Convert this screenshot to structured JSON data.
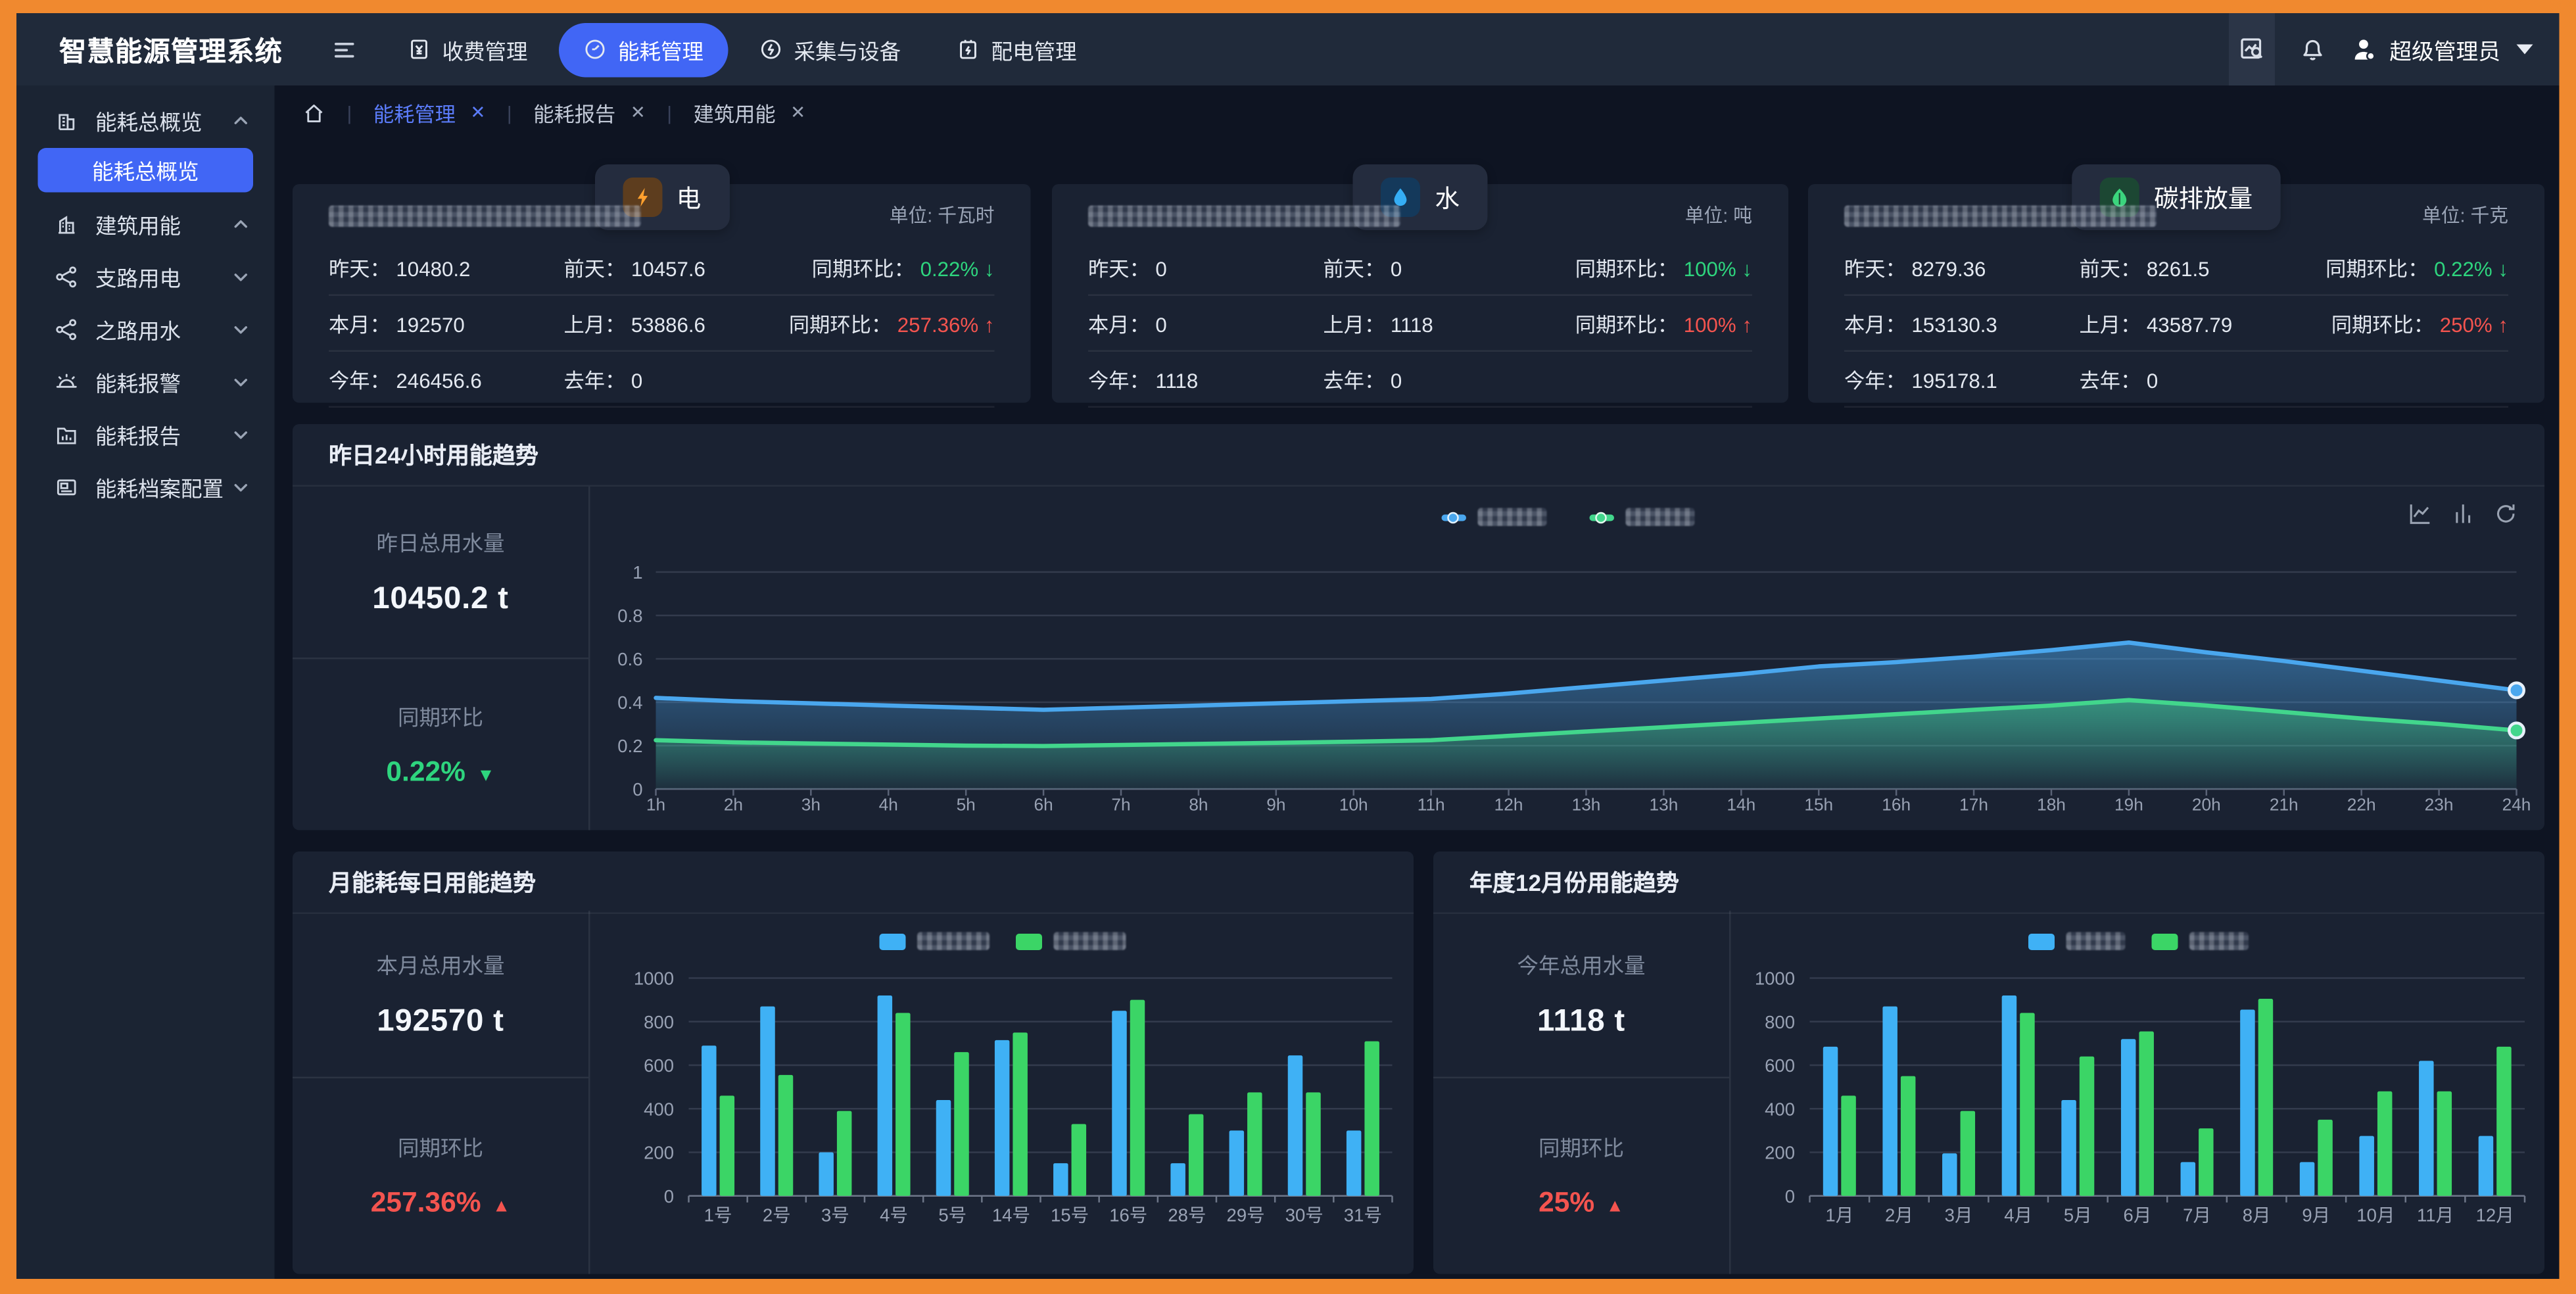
{
  "app_title": "智慧能源管理系统",
  "topbar": {
    "menu": [
      {
        "key": "fee-management",
        "label": "收费管理",
        "icon": "fee",
        "active": false
      },
      {
        "key": "energy-management",
        "label": "能耗管理",
        "icon": "gauge",
        "active": true
      },
      {
        "key": "collection-devices",
        "label": "采集与设备",
        "icon": "collect",
        "active": false
      },
      {
        "key": "power-distribution",
        "label": "配电管理",
        "icon": "distribute",
        "active": false
      }
    ],
    "user_name": "超级管理员"
  },
  "sidebar": {
    "group_top": {
      "key": "overview-group",
      "label": "能耗总概览",
      "icon": "building1",
      "arrow": "up"
    },
    "selected_child": {
      "key": "overview-page",
      "label": "能耗总概览"
    },
    "groups": [
      {
        "key": "building-energy",
        "label": "建筑用能",
        "icon": "building2",
        "arrow": "up"
      },
      {
        "key": "branch-electricity",
        "label": "支路用电",
        "icon": "branch",
        "arrow": "down"
      },
      {
        "key": "branch-water",
        "label": "之路用水",
        "icon": "branch",
        "arrow": "down"
      },
      {
        "key": "energy-alarm",
        "label": "能耗报警",
        "icon": "alarm",
        "arrow": "down"
      },
      {
        "key": "energy-report",
        "label": "能耗报告",
        "icon": "report",
        "arrow": "down"
      },
      {
        "key": "energy-archive-config",
        "label": "能耗档案配置",
        "icon": "archive",
        "arrow": "down"
      }
    ]
  },
  "tabs": [
    {
      "key": "tab-energy-management",
      "label": "能耗管理",
      "active": true
    },
    {
      "key": "tab-energy-report",
      "label": "能耗报告",
      "active": false
    },
    {
      "key": "tab-building-energy",
      "label": "建筑用能",
      "active": false
    }
  ],
  "stat_cards": [
    {
      "key": "electricity",
      "badge_label": "电",
      "badge_icon": "bolt",
      "unit": "单位: 千瓦时",
      "title_redacted": true,
      "rows": [
        {
          "cells": [
            {
              "label": "昨天",
              "value": "10480.2"
            },
            {
              "label": "前天",
              "value": "10457.6"
            }
          ],
          "ratio": {
            "label": "同期环比",
            "value": "0.22%",
            "trend": "down",
            "tone": "green"
          }
        },
        {
          "cells": [
            {
              "label": "本月",
              "value": "192570"
            },
            {
              "label": "上月",
              "value": "53886.6"
            }
          ],
          "ratio": {
            "label": "同期环比",
            "value": "257.36%",
            "trend": "up",
            "tone": "red"
          }
        },
        {
          "cells": [
            {
              "label": "今年",
              "value": "246456.6"
            },
            {
              "label": "去年",
              "value": "0"
            }
          ],
          "ratio": null
        }
      ]
    },
    {
      "key": "water",
      "badge_label": "水",
      "badge_icon": "droplet",
      "unit": "单位: 吨",
      "title_redacted": true,
      "rows": [
        {
          "cells": [
            {
              "label": "昨天",
              "value": "0"
            },
            {
              "label": "前天",
              "value": "0"
            }
          ],
          "ratio": {
            "label": "同期环比",
            "value": "100%",
            "trend": "down",
            "tone": "green"
          }
        },
        {
          "cells": [
            {
              "label": "本月",
              "value": "0"
            },
            {
              "label": "上月",
              "value": "1118"
            }
          ],
          "ratio": {
            "label": "同期环比",
            "value": "100%",
            "trend": "up",
            "tone": "red"
          }
        },
        {
          "cells": [
            {
              "label": "今年",
              "value": "1118"
            },
            {
              "label": "去年",
              "value": "0"
            }
          ],
          "ratio": null
        }
      ]
    },
    {
      "key": "carbon",
      "badge_label": "碳排放量",
      "badge_icon": "leaf",
      "unit": "单位: 千克",
      "title_redacted": true,
      "rows": [
        {
          "cells": [
            {
              "label": "昨天",
              "value": "8279.36"
            },
            {
              "label": "前天",
              "value": "8261.5"
            }
          ],
          "ratio": {
            "label": "同期环比",
            "value": "0.22%",
            "trend": "down",
            "tone": "green"
          }
        },
        {
          "cells": [
            {
              "label": "本月",
              "value": "153130.3"
            },
            {
              "label": "上月",
              "value": "43587.79"
            }
          ],
          "ratio": {
            "label": "同期环比",
            "value": "250%",
            "trend": "up",
            "tone": "red"
          }
        },
        {
          "cells": [
            {
              "label": "今年",
              "value": "195178.1"
            },
            {
              "label": "去年",
              "value": "0"
            }
          ],
          "ratio": null
        }
      ]
    }
  ],
  "trend24": {
    "title": "昨日24小时用能趋势",
    "stats": [
      {
        "label": "昨日总用水量",
        "value": "10450.2 t"
      },
      {
        "label": "同期环比",
        "value": "0.22%",
        "arrow": "▼",
        "tone": "green"
      }
    ],
    "legend": [
      {
        "color": "#4aa7ee",
        "redacted": true
      },
      {
        "color": "#42d68c",
        "redacted": true
      }
    ],
    "chart_data": {
      "type": "line",
      "x": [
        "1h",
        "2h",
        "3h",
        "4h",
        "5h",
        "6h",
        "7h",
        "8h",
        "9h",
        "10h",
        "11h",
        "12h",
        "13h",
        "13h",
        "14h",
        "15h",
        "16h",
        "17h",
        "18h",
        "19h",
        "20h",
        "21h",
        "22h",
        "23h",
        "24h"
      ],
      "series": [
        {
          "name": "series-blue",
          "color": "#4aa7ee",
          "values": [
            0.42,
            0.405,
            0.395,
            0.385,
            0.375,
            0.365,
            0.375,
            0.385,
            0.395,
            0.405,
            0.415,
            0.44,
            0.47,
            0.5,
            0.53,
            0.565,
            0.585,
            0.61,
            0.64,
            0.675,
            0.63,
            0.59,
            0.545,
            0.5,
            0.455
          ]
        },
        {
          "name": "series-green",
          "color": "#42d68c",
          "values": [
            0.225,
            0.215,
            0.21,
            0.205,
            0.2,
            0.198,
            0.203,
            0.208,
            0.213,
            0.218,
            0.225,
            0.245,
            0.265,
            0.285,
            0.305,
            0.325,
            0.345,
            0.365,
            0.385,
            0.41,
            0.385,
            0.355,
            0.325,
            0.3,
            0.27
          ]
        }
      ],
      "ylim": [
        0,
        1
      ],
      "yticks": [
        0,
        0.2,
        0.4,
        0.6,
        0.8,
        1
      ],
      "grid": true,
      "legend_position": "top-center",
      "end_markers": true
    }
  },
  "monthly": {
    "title": "月能耗每日用能趋势",
    "stats": [
      {
        "label": "本月总用水量",
        "value": "192570 t"
      },
      {
        "label": "同期环比",
        "value": "257.36%",
        "arrow": "▲",
        "tone": "red"
      }
    ],
    "legend": [
      {
        "color": "#3fb1f5",
        "redacted": true
      },
      {
        "color": "#3bd566",
        "redacted": true
      }
    ],
    "chart_data": {
      "type": "bar",
      "categories": [
        "1号",
        "2号",
        "3号",
        "4号",
        "5号",
        "14号",
        "15号",
        "16号",
        "28号",
        "29号",
        "30号",
        "31号"
      ],
      "series": [
        {
          "name": "series-blue",
          "color": "#3fb1f5",
          "values": [
            690,
            870,
            200,
            920,
            440,
            715,
            150,
            850,
            150,
            300,
            645,
            300
          ]
        },
        {
          "name": "series-green",
          "color": "#3bd566",
          "values": [
            460,
            555,
            390,
            840,
            660,
            750,
            330,
            900,
            375,
            475,
            475,
            710
          ]
        }
      ],
      "ylim": [
        0,
        1000
      ],
      "yticks": [
        0,
        200,
        400,
        600,
        800,
        1000
      ],
      "grid": true,
      "legend_position": "top-center"
    }
  },
  "yearly": {
    "title": "年度12月份用能趋势",
    "stats": [
      {
        "label": "今年总用水量",
        "value": "1118 t"
      },
      {
        "label": "同期环比",
        "value": "25%",
        "arrow": "▲",
        "tone": "red"
      }
    ],
    "legend": [
      {
        "color": "#3fb1f5",
        "redacted": true
      },
      {
        "color": "#3bd566",
        "redacted": true
      }
    ],
    "chart_data": {
      "type": "bar",
      "categories": [
        "1月",
        "2月",
        "3月",
        "4月",
        "5月",
        "6月",
        "7月",
        "8月",
        "9月",
        "10月",
        "11月",
        "12月"
      ],
      "series": [
        {
          "name": "series-blue",
          "color": "#3fb1f5",
          "values": [
            685,
            870,
            195,
            920,
            440,
            720,
            155,
            855,
            155,
            275,
            620,
            275
          ]
        },
        {
          "name": "series-green",
          "color": "#3bd566",
          "values": [
            460,
            550,
            390,
            840,
            640,
            755,
            310,
            905,
            350,
            480,
            480,
            685
          ]
        }
      ],
      "ylim": [
        0,
        1000
      ],
      "yticks": [
        0,
        200,
        400,
        600,
        800,
        1000
      ],
      "grid": true,
      "legend_position": "top-center"
    }
  },
  "colors": {
    "frame_orange": "#f0892f",
    "topbar_bg": "#202a3a",
    "sidebar_bg": "#1b2433",
    "main_bg": "#0e1422",
    "card_bg": "#1a2232",
    "accent_blue": "#4166f5",
    "active_tab_blue": "#5b7cfa",
    "green": "#2ed57e",
    "red": "#f4544f",
    "bolt_bg": "#5d3d1e",
    "bolt": "#ffa02e",
    "droplet_bg": "#14395b",
    "droplet": "#35aef5",
    "leaf_bg": "#1c4733",
    "leaf": "#3bd57d"
  }
}
